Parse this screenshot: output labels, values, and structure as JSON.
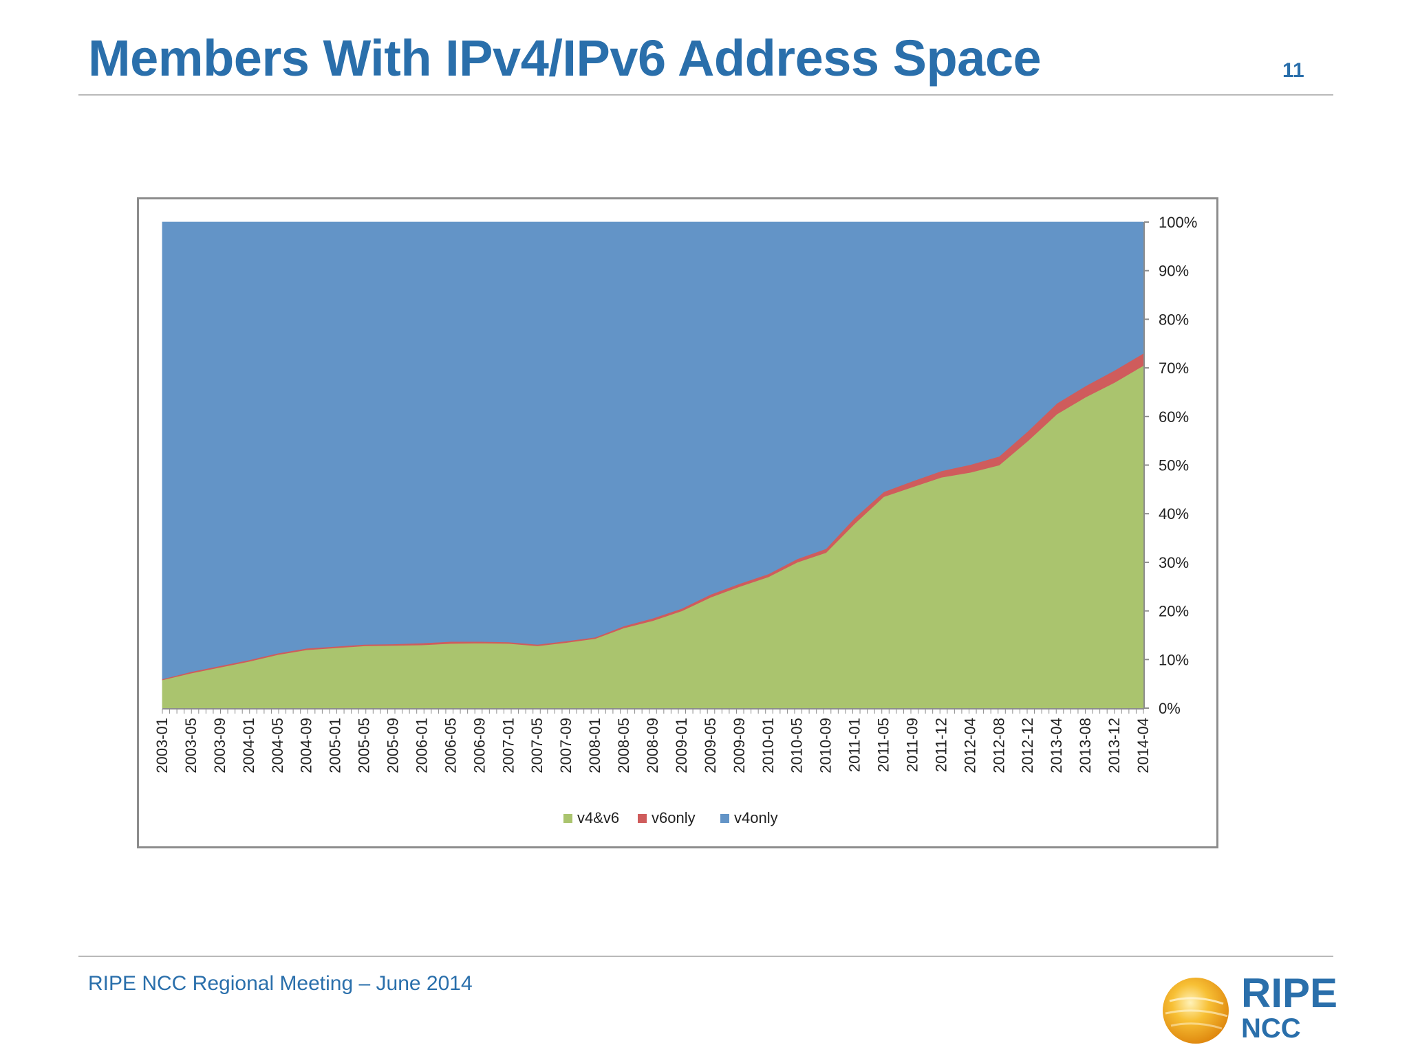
{
  "slide": {
    "title": "Members With IPv4/IPv6 Address Space",
    "page_number": "11",
    "footer": "RIPE NCC Regional Meeting – June 2014",
    "logo": {
      "line1": "RIPE",
      "line2": "NCC"
    }
  },
  "colors": {
    "v4v6": "#aac46e",
    "v6only": "#cf5c5c",
    "v4only": "#6394c7",
    "title": "#2a6fab"
  },
  "chart_data": {
    "type": "area",
    "stacked": "percent",
    "x_ticks": [
      "2003-01",
      "2003-05",
      "2003-09",
      "2004-01",
      "2004-05",
      "2004-09",
      "2005-01",
      "2005-05",
      "2005-09",
      "2006-01",
      "2006-05",
      "2006-09",
      "2007-01",
      "2007-05",
      "2007-09",
      "2008-01",
      "2008-05",
      "2008-09",
      "2009-01",
      "2009-05",
      "2009-09",
      "2010-01",
      "2010-05",
      "2010-09",
      "2011-01",
      "2011-05",
      "2011-09",
      "2011-12",
      "2012-04",
      "2012-08",
      "2012-12",
      "2013-04",
      "2013-08",
      "2013-12",
      "2014-04"
    ],
    "y_ticks": [
      "0%",
      "10%",
      "20%",
      "30%",
      "40%",
      "50%",
      "60%",
      "70%",
      "80%",
      "90%",
      "100%"
    ],
    "ylim": [
      0,
      100
    ],
    "legend_position": "bottom",
    "series": [
      {
        "name": "v4&v6",
        "values": [
          5.8,
          7.2,
          8.4,
          9.6,
          11.0,
          12.0,
          12.4,
          12.8,
          12.9,
          13.0,
          13.3,
          13.4,
          13.3,
          12.8,
          13.5,
          14.3,
          16.5,
          18.0,
          20.0,
          22.8,
          25.0,
          27.0,
          30.0,
          32.0,
          38.0,
          43.5,
          45.5,
          47.5,
          48.5,
          50.0,
          55.0,
          60.5,
          64.0,
          67.0,
          70.5
        ]
      },
      {
        "name": "v6only",
        "values": [
          0.2,
          0.3,
          0.3,
          0.3,
          0.3,
          0.3,
          0.3,
          0.3,
          0.3,
          0.4,
          0.4,
          0.3,
          0.3,
          0.3,
          0.3,
          0.3,
          0.4,
          0.5,
          0.5,
          0.6,
          0.6,
          0.6,
          0.7,
          0.8,
          1.2,
          1.0,
          1.2,
          1.3,
          1.6,
          1.8,
          2.0,
          2.2,
          2.3,
          2.5,
          2.5
        ]
      },
      {
        "name": "v4only",
        "values": [
          94.0,
          92.5,
          91.3,
          90.1,
          88.7,
          87.7,
          87.3,
          86.9,
          86.8,
          86.6,
          86.3,
          86.3,
          86.4,
          86.9,
          86.2,
          85.4,
          83.1,
          81.5,
          79.5,
          76.6,
          74.4,
          72.4,
          69.3,
          67.2,
          60.8,
          55.5,
          53.3,
          51.2,
          49.9,
          48.2,
          43.0,
          37.3,
          33.7,
          30.5,
          27.0
        ]
      }
    ]
  }
}
